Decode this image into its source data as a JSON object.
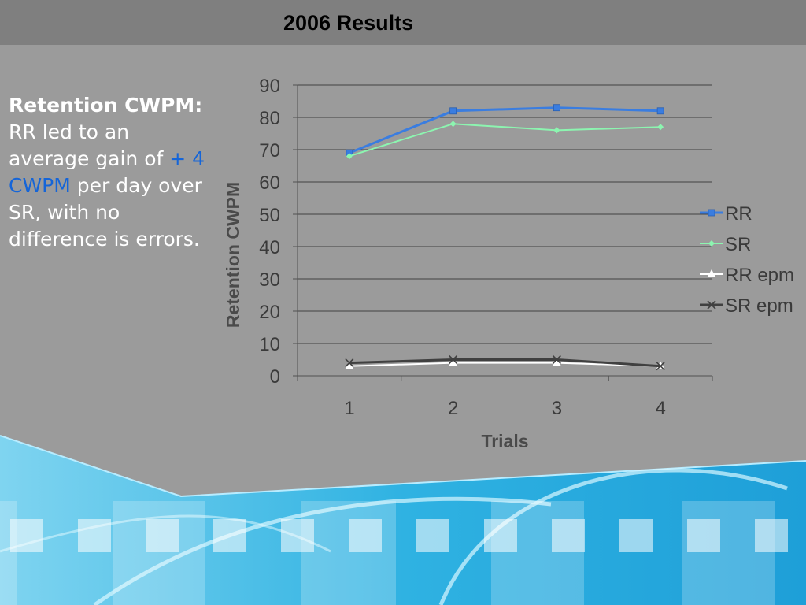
{
  "slide": {
    "title": "2006 Results",
    "text": {
      "heading": "Retention CWPM:",
      "line1": "RR led to an average gain of",
      "highlight": "+ 4 CWPM",
      "line2": "per day over SR, with no difference is errors."
    }
  },
  "colors": {
    "background": "#9b9b9b",
    "title_bar": "#7f7f7f",
    "accent_text": "#1565d8",
    "decor_blue": "#29aee0"
  },
  "chart_data": {
    "type": "line",
    "categories": [
      "1",
      "2",
      "3",
      "4"
    ],
    "ylim": [
      0,
      90
    ],
    "yticks": [
      0,
      10,
      20,
      30,
      40,
      50,
      60,
      70,
      80,
      90
    ],
    "xlabel": "Trials",
    "ylabel": "Retention CWPM",
    "grid": true,
    "legend_position": "right",
    "series": [
      {
        "name": "RR",
        "values": [
          69,
          82,
          83,
          82
        ],
        "color": "#3a7de0",
        "marker": "square"
      },
      {
        "name": "SR",
        "values": [
          68,
          78,
          76,
          77
        ],
        "color": "#8cf5b0",
        "marker": "diamond"
      },
      {
        "name": "RR epm",
        "values": [
          3,
          4,
          4,
          3
        ],
        "color": "#ffffff",
        "marker": "triangle"
      },
      {
        "name": "SR epm",
        "values": [
          4,
          5,
          5,
          3
        ],
        "color": "#404040",
        "marker": "x"
      }
    ]
  }
}
